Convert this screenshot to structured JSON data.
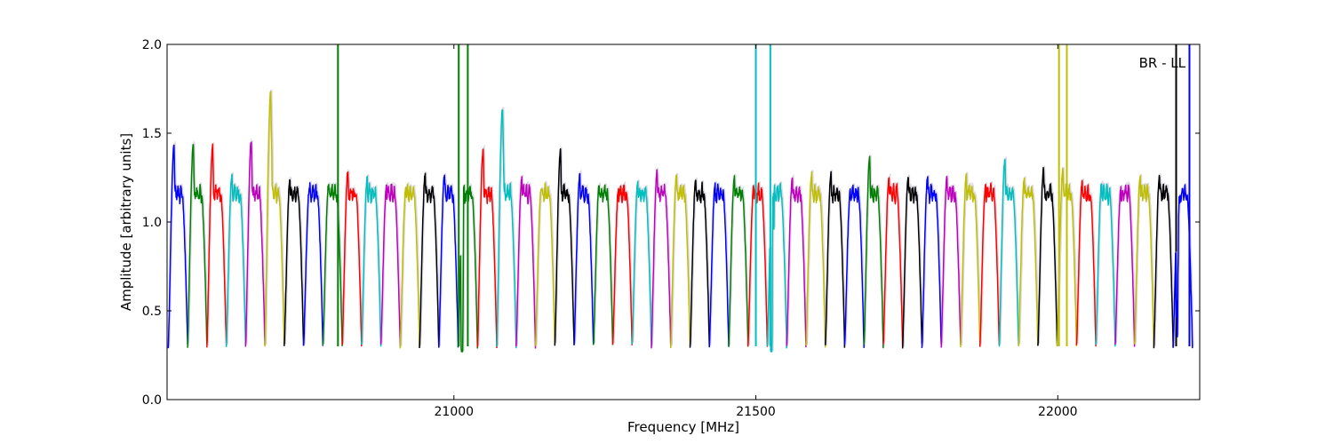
{
  "chart_data": {
    "type": "line",
    "title": "",
    "annotation": "BR - LL",
    "xlabel": "Frequency [MHz]",
    "ylabel": "Amplitude [arbitrary units]",
    "xlim": [
      20525,
      22235
    ],
    "ylim": [
      0.0,
      2.0
    ],
    "xticks": [
      21000,
      21500,
      22000
    ],
    "xtick_labels": [
      "21000",
      "21500",
      "22000"
    ],
    "yticks": [
      0.0,
      0.5,
      1.0,
      1.5,
      2.0
    ],
    "ytick_labels": [
      "0.0",
      "0.5",
      "1.0",
      "1.5",
      "2.0"
    ],
    "grid": false,
    "legend": "none",
    "series_colors": [
      "#0000ff",
      "#008000",
      "#ff0000",
      "#00bfbf",
      "#bf00bf",
      "#bfbf00",
      "#000000"
    ],
    "shadow_color": "#b0a8c0",
    "channel_width_mhz": 32,
    "channels": [
      {
        "x_start": 20527,
        "color": "#0000ff",
        "peak": 1.43
      },
      {
        "x_start": 20559,
        "color": "#008000",
        "peak": 1.44
      },
      {
        "x_start": 20591,
        "color": "#ff0000",
        "peak": 1.43
      },
      {
        "x_start": 20623,
        "color": "#00bfbf",
        "peak": 1.27
      },
      {
        "x_start": 20655,
        "color": "#bf00bf",
        "peak": 1.46
      },
      {
        "x_start": 20687,
        "color": "#bfbf00",
        "peak": 1.73
      },
      {
        "x_start": 20719,
        "color": "#000000",
        "peak": 1.24
      },
      {
        "x_start": 20751,
        "color": "#0000ff",
        "peak": 1.18
      },
      {
        "x_start": 20783,
        "color": "#008000",
        "peak": 1.21,
        "spikes": [
          {
            "x": 20808,
            "y": 2.0
          }
        ]
      },
      {
        "x_start": 20815,
        "color": "#ff0000",
        "peak": 1.29
      },
      {
        "x_start": 20847,
        "color": "#00bfbf",
        "peak": 1.25
      },
      {
        "x_start": 20879,
        "color": "#bf00bf",
        "peak": 1.21
      },
      {
        "x_start": 20911,
        "color": "#bfbf00",
        "peak": 1.2
      },
      {
        "x_start": 20943,
        "color": "#000000",
        "peak": 1.27
      },
      {
        "x_start": 20975,
        "color": "#0000ff",
        "peak": 1.27
      },
      {
        "x_start": 21007,
        "color": "#008000",
        "peak": 1.27,
        "spikes": [
          {
            "x": 21008,
            "y": 2.0
          },
          {
            "x": 21023,
            "y": 2.0
          }
        ],
        "dip": 0.0
      },
      {
        "x_start": 21039,
        "color": "#ff0000",
        "peak": 1.41
      },
      {
        "x_start": 21071,
        "color": "#00bfbf",
        "peak": 1.64
      },
      {
        "x_start": 21103,
        "color": "#bf00bf",
        "peak": 1.25
      },
      {
        "x_start": 21135,
        "color": "#bfbf00",
        "peak": 1.19
      },
      {
        "x_start": 21167,
        "color": "#000000",
        "peak": 1.4
      },
      {
        "x_start": 21199,
        "color": "#0000ff",
        "peak": 1.27
      },
      {
        "x_start": 21231,
        "color": "#008000",
        "peak": 1.21
      },
      {
        "x_start": 21263,
        "color": "#ff0000",
        "peak": 1.18
      },
      {
        "x_start": 21295,
        "color": "#00bfbf",
        "peak": 1.23
      },
      {
        "x_start": 21327,
        "color": "#bf00bf",
        "peak": 1.29
      },
      {
        "x_start": 21359,
        "color": "#bfbf00",
        "peak": 1.26
      },
      {
        "x_start": 21391,
        "color": "#000000",
        "peak": 1.24
      },
      {
        "x_start": 21423,
        "color": "#0000ff",
        "peak": 1.21
      },
      {
        "x_start": 21455,
        "color": "#008000",
        "peak": 1.26
      },
      {
        "x_start": 21487,
        "color": "#ff0000",
        "peak": 1.2
      },
      {
        "x_start": 21519,
        "color": "#00bfbf",
        "peak": 1.33,
        "spikes": [
          {
            "x": 21500,
            "y": 2.0
          },
          {
            "x": 21524,
            "y": 2.0
          }
        ],
        "dip": 0.07
      },
      {
        "x_start": 21551,
        "color": "#bf00bf",
        "peak": 1.25
      },
      {
        "x_start": 21583,
        "color": "#bfbf00",
        "peak": 1.27
      },
      {
        "x_start": 21615,
        "color": "#000000",
        "peak": 1.28
      },
      {
        "x_start": 21647,
        "color": "#0000ff",
        "peak": 1.18
      },
      {
        "x_start": 21679,
        "color": "#008000",
        "peak": 1.36
      },
      {
        "x_start": 21711,
        "color": "#ff0000",
        "peak": 1.25
      },
      {
        "x_start": 21743,
        "color": "#000000",
        "peak": 1.26
      },
      {
        "x_start": 21775,
        "color": "#0000ff",
        "peak": 1.25
      },
      {
        "x_start": 21807,
        "color": "#bf00bf",
        "peak": 1.25
      },
      {
        "x_start": 21839,
        "color": "#bfbf00",
        "peak": 1.26
      },
      {
        "x_start": 21871,
        "color": "#ff0000",
        "peak": 1.21
      },
      {
        "x_start": 21903,
        "color": "#00bfbf",
        "peak": 1.36
      },
      {
        "x_start": 21935,
        "color": "#bfbf00",
        "peak": 1.24
      },
      {
        "x_start": 21967,
        "color": "#000000",
        "peak": 1.3
      },
      {
        "x_start": 21999,
        "color": "#bfbf00",
        "peak": 1.3,
        "spikes": [
          {
            "x": 22002,
            "y": 2.0
          },
          {
            "x": 22015,
            "y": 2.0
          }
        ]
      },
      {
        "x_start": 22031,
        "color": "#ff0000",
        "peak": 1.23
      },
      {
        "x_start": 22063,
        "color": "#00bfbf",
        "peak": 1.22
      },
      {
        "x_start": 22095,
        "color": "#bf00bf",
        "peak": 1.19
      },
      {
        "x_start": 22127,
        "color": "#bfbf00",
        "peak": 1.26
      },
      {
        "x_start": 22159,
        "color": "#000000",
        "peak": 1.26,
        "spikes": [
          {
            "x": 22196,
            "y": 2.0
          }
        ]
      },
      {
        "x_start": 22191,
        "color": "#0000ff",
        "peak": 1.3,
        "spikes": [
          {
            "x": 22218,
            "y": 2.0
          }
        ],
        "dip": 0.4
      }
    ]
  }
}
